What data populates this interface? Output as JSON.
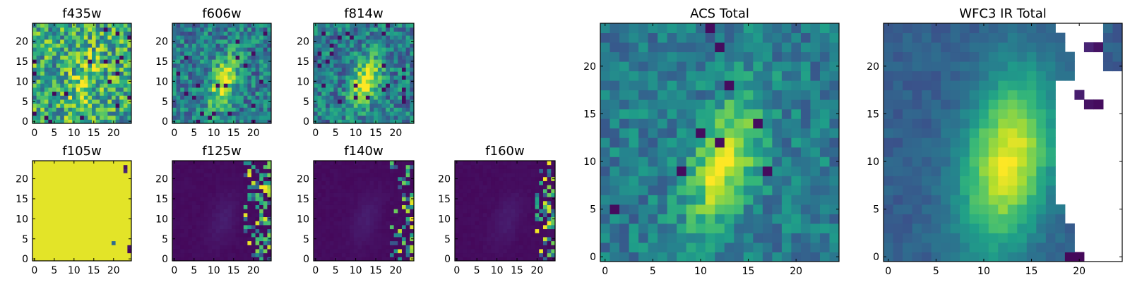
{
  "chart_data": [
    {
      "type": "heatmap",
      "title": "f435w",
      "xticks": [
        "0",
        "5",
        "10",
        "15",
        "20"
      ],
      "yticks": [
        "0",
        "5",
        "10",
        "15",
        "20"
      ],
      "xlim": [
        0,
        24
      ],
      "ylim": [
        0,
        24
      ],
      "colormap": "viridis",
      "pattern": "noisy field with faint diagonal brightening near center"
    },
    {
      "type": "heatmap",
      "title": "f606w",
      "xticks": [
        "0",
        "5",
        "10",
        "15",
        "20"
      ],
      "yticks": [
        "0",
        "5",
        "10",
        "15",
        "20"
      ],
      "xlim": [
        0,
        24
      ],
      "ylim": [
        0,
        24
      ],
      "colormap": "viridis",
      "pattern": "bright elongated source near center"
    },
    {
      "type": "heatmap",
      "title": "f814w",
      "xticks": [
        "0",
        "5",
        "10",
        "15",
        "20"
      ],
      "yticks": [
        "0",
        "5",
        "10",
        "15",
        "20"
      ],
      "xlim": [
        0,
        24
      ],
      "ylim": [
        0,
        24
      ],
      "colormap": "viridis",
      "pattern": "bright elongated source near center"
    },
    {
      "type": "heatmap",
      "title": "f105w",
      "xticks": [
        "0",
        "5",
        "10",
        "15",
        "20"
      ],
      "yticks": [
        "0",
        "5",
        "10",
        "15",
        "20"
      ],
      "xlim": [
        0,
        24
      ],
      "ylim": [
        0,
        24
      ],
      "colormap": "viridis",
      "pattern": "almost uniformly saturated yellow with a few dark pixels on right"
    },
    {
      "type": "heatmap",
      "title": "f125w",
      "xticks": [
        "0",
        "5",
        "10",
        "15",
        "20"
      ],
      "yticks": [
        "0",
        "5",
        "10",
        "15",
        "20"
      ],
      "xlim": [
        0,
        24
      ],
      "ylim": [
        0,
        24
      ],
      "colormap": "viridis",
      "pattern": "mostly dark purple with scattered bright pixels at right edge"
    },
    {
      "type": "heatmap",
      "title": "f140w",
      "xticks": [
        "0",
        "5",
        "10",
        "15",
        "20"
      ],
      "yticks": [
        "0",
        "5",
        "10",
        "15",
        "20"
      ],
      "xlim": [
        0,
        24
      ],
      "ylim": [
        0,
        24
      ],
      "colormap": "viridis",
      "pattern": "mostly dark purple with scattered bright pixels at right edge"
    },
    {
      "type": "heatmap",
      "title": "f160w",
      "xticks": [
        "0",
        "5",
        "10",
        "15",
        "20"
      ],
      "yticks": [
        "0",
        "5",
        "10",
        "15",
        "20"
      ],
      "xlim": [
        0,
        24
      ],
      "ylim": [
        0,
        24
      ],
      "colormap": "viridis",
      "pattern": "mostly dark purple with scattered bright pixels at right edge"
    },
    {
      "type": "heatmap",
      "title": "ACS Total",
      "xticks": [
        "0",
        "5",
        "10",
        "15",
        "20"
      ],
      "yticks": [
        "0",
        "5",
        "10",
        "15",
        "20"
      ],
      "xlim": [
        0,
        24
      ],
      "ylim": [
        0,
        24
      ],
      "colormap": "viridis",
      "pattern": "bright elongated source centered near (13, 10)"
    },
    {
      "type": "heatmap",
      "title": "WFC3 IR Total",
      "xticks": [
        "0",
        "5",
        "10",
        "15",
        "20"
      ],
      "yticks": [
        "0",
        "5",
        "10",
        "15",
        "20"
      ],
      "xlim": [
        0,
        24
      ],
      "ylim": [
        0,
        24
      ],
      "colormap": "viridis",
      "pattern": "smooth elongated source near (13, 10); masked blank pixels at right edge"
    }
  ]
}
